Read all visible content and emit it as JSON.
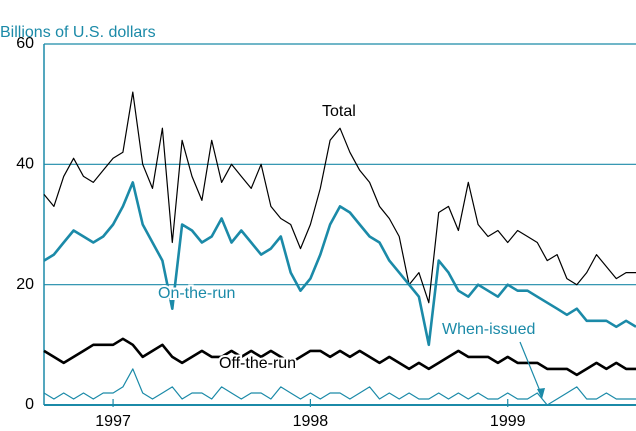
{
  "chart_data": {
    "type": "line",
    "y_label": "Billions of U.S. dollars",
    "x": [
      1996.65,
      1996.7,
      1996.75,
      1996.8,
      1996.85,
      1996.9,
      1996.95,
      1997.0,
      1997.05,
      1997.1,
      1997.15,
      1997.2,
      1997.25,
      1997.3,
      1997.35,
      1997.4,
      1997.45,
      1997.5,
      1997.55,
      1997.6,
      1997.65,
      1997.7,
      1997.75,
      1997.8,
      1997.85,
      1997.9,
      1997.95,
      1998.0,
      1998.05,
      1998.1,
      1998.15,
      1998.2,
      1998.25,
      1998.3,
      1998.35,
      1998.4,
      1998.45,
      1998.5,
      1998.55,
      1998.6,
      1998.65,
      1998.7,
      1998.75,
      1998.8,
      1998.85,
      1998.9,
      1998.95,
      1999.0,
      1999.05,
      1999.1,
      1999.15,
      1999.2,
      1999.25,
      1999.3,
      1999.35,
      1999.4,
      1999.45,
      1999.5,
      1999.55,
      1999.6,
      1999.65
    ],
    "xlim": [
      1996.65,
      1999.65
    ],
    "xticks": [
      1997,
      1998,
      1999
    ],
    "ylim": [
      0,
      60
    ],
    "yticks": [
      0,
      20,
      40,
      60
    ],
    "grid": true,
    "series": [
      {
        "name": "Total",
        "color": "#000000",
        "width": 1.2,
        "label_pos": "top",
        "values": [
          35,
          33,
          38,
          41,
          38,
          37,
          39,
          41,
          42,
          52,
          40,
          36,
          46,
          27,
          44,
          38,
          34,
          44,
          37,
          40,
          38,
          36,
          40,
          33,
          31,
          30,
          26,
          30,
          36,
          44,
          46,
          42,
          39,
          37,
          33,
          31,
          28,
          20,
          22,
          17,
          32,
          33,
          29,
          37,
          30,
          28,
          29,
          27,
          29,
          28,
          27,
          24,
          25,
          21,
          20,
          22,
          25,
          23,
          21,
          22,
          22
        ]
      },
      {
        "name": "On-the-run",
        "color": "#1b8aa8",
        "width": 2.6,
        "values": [
          24,
          25,
          27,
          29,
          28,
          27,
          28,
          30,
          33,
          37,
          30,
          27,
          24,
          16,
          30,
          29,
          27,
          28,
          31,
          27,
          29,
          27,
          25,
          26,
          28,
          22,
          19,
          21,
          25,
          30,
          33,
          32,
          30,
          28,
          27,
          24,
          22,
          20,
          18,
          10,
          24,
          22,
          19,
          18,
          20,
          19,
          18,
          20,
          19,
          19,
          18,
          17,
          16,
          15,
          16,
          14,
          14,
          14,
          13,
          14,
          13
        ]
      },
      {
        "name": "Off-the-run",
        "color": "#000000",
        "width": 2.6,
        "values": [
          9,
          8,
          7,
          8,
          9,
          10,
          10,
          10,
          11,
          10,
          8,
          9,
          10,
          8,
          7,
          8,
          9,
          8,
          8,
          9,
          8,
          9,
          8,
          9,
          8,
          7,
          8,
          9,
          9,
          8,
          9,
          8,
          9,
          8,
          7,
          8,
          7,
          6,
          7,
          6,
          7,
          8,
          9,
          8,
          8,
          8,
          7,
          8,
          7,
          7,
          7,
          6,
          6,
          6,
          5,
          6,
          7,
          6,
          7,
          6,
          6
        ]
      },
      {
        "name": "When-issued",
        "color": "#1b8aa8",
        "width": 1.2,
        "values": [
          2,
          1,
          2,
          1,
          2,
          1,
          2,
          2,
          3,
          6,
          2,
          1,
          2,
          3,
          1,
          2,
          2,
          1,
          3,
          2,
          1,
          2,
          2,
          1,
          3,
          2,
          1,
          2,
          1,
          2,
          2,
          1,
          2,
          3,
          1,
          2,
          1,
          2,
          1,
          1,
          2,
          1,
          2,
          1,
          2,
          1,
          1,
          2,
          1,
          1,
          2,
          0,
          1,
          2,
          3,
          1,
          1,
          2,
          1,
          1,
          1
        ]
      }
    ]
  }
}
